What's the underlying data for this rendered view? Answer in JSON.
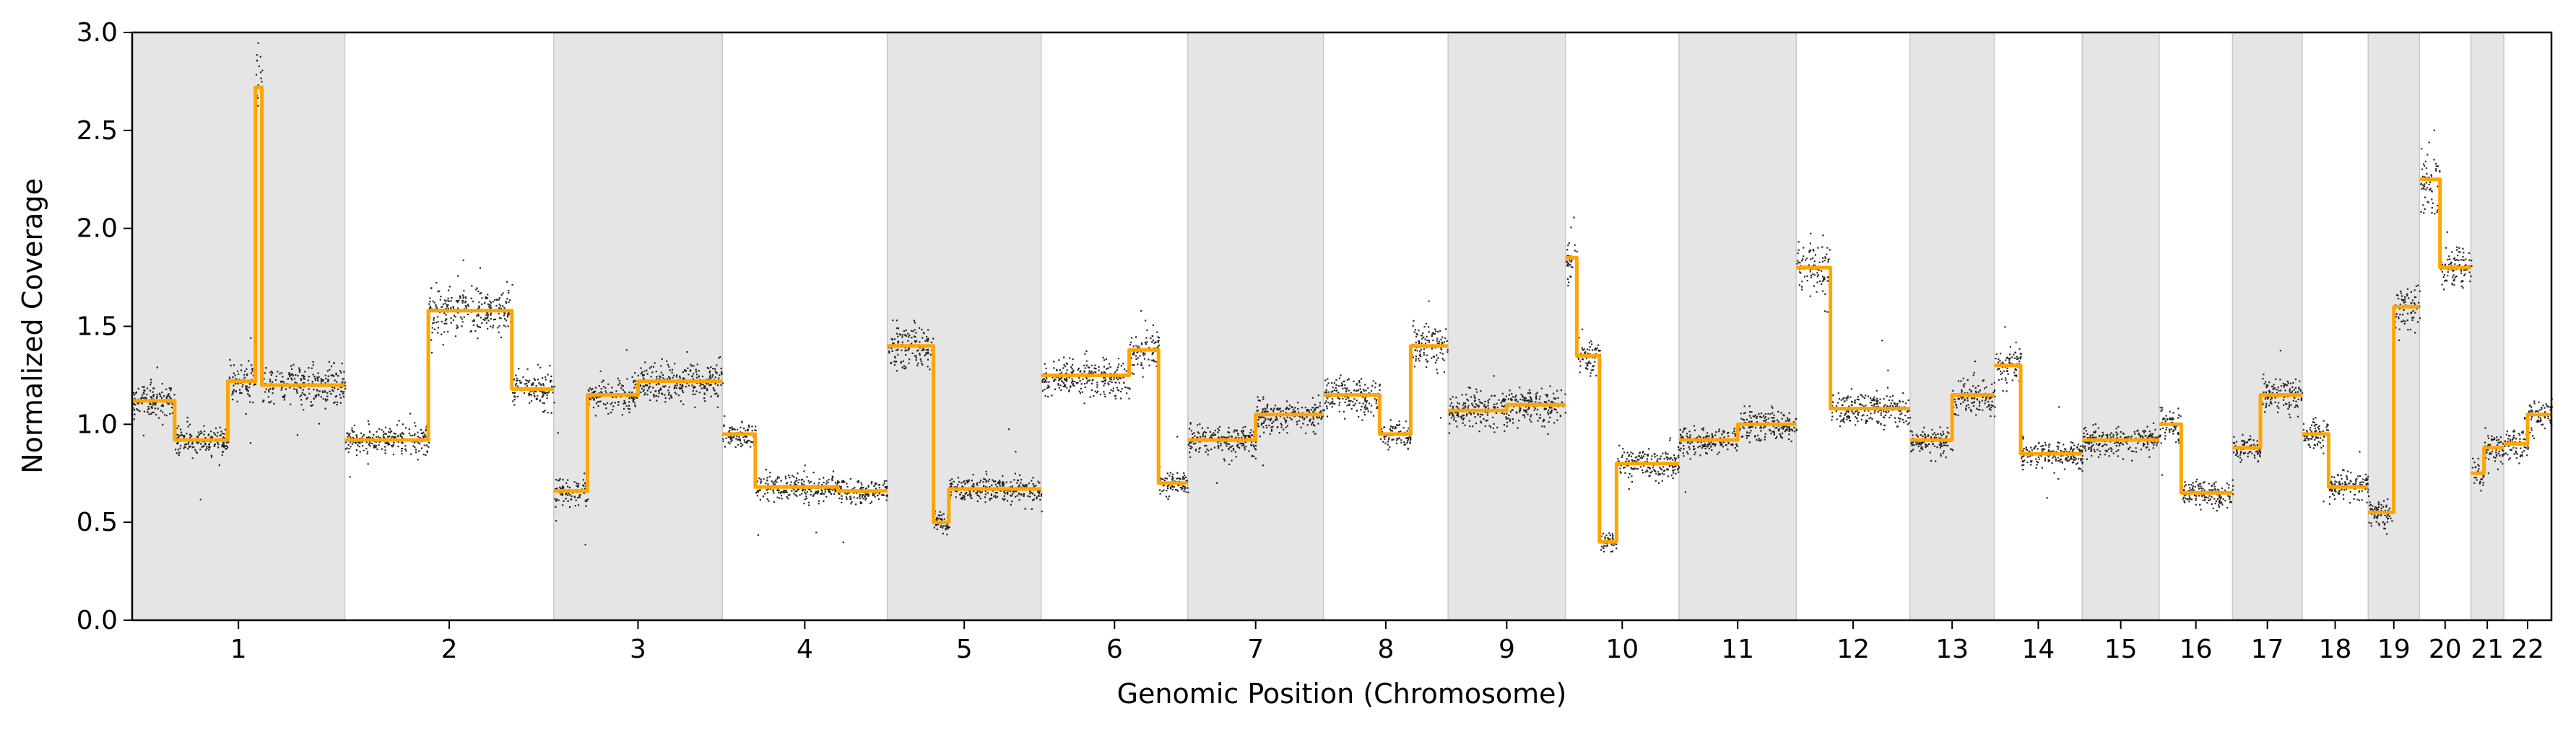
{
  "chart_data": {
    "type": "scatter",
    "title": "",
    "xlabel": "Genomic Position (Chromosome)",
    "ylabel": "Normalized Coverage",
    "ylim": [
      0,
      3.0
    ],
    "yticks": [
      0.0,
      0.5,
      1.0,
      1.5,
      2.0,
      2.5,
      3.0
    ],
    "ytick_labels": [
      "0.0",
      "0.5",
      "1.0",
      "1.5",
      "2.0",
      "2.5",
      "3.0"
    ],
    "grid": false,
    "legend": "none",
    "shaded_bands": "alternate chromosomes shaded gray",
    "colors": {
      "points": "#000000",
      "segments": "#FFA500",
      "band": "#E5E5E5",
      "band_edge": "#C8C8C8"
    },
    "chromosomes": [
      {
        "label": "1",
        "shaded": true,
        "segments": [
          {
            "from": 0.0,
            "to": 0.2,
            "value": 1.12
          },
          {
            "from": 0.2,
            "to": 0.45,
            "value": 0.92
          },
          {
            "from": 0.45,
            "to": 0.58,
            "value": 1.22
          },
          {
            "from": 0.58,
            "to": 0.61,
            "value": 2.72
          },
          {
            "from": 0.61,
            "to": 1.0,
            "value": 1.2
          }
        ]
      },
      {
        "label": "2",
        "shaded": false,
        "segments": [
          {
            "from": 0.0,
            "to": 0.4,
            "value": 0.92
          },
          {
            "from": 0.4,
            "to": 0.8,
            "value": 1.58
          },
          {
            "from": 0.8,
            "to": 1.0,
            "value": 1.18
          }
        ]
      },
      {
        "label": "3",
        "shaded": true,
        "segments": [
          {
            "from": 0.0,
            "to": 0.2,
            "value": 0.66
          },
          {
            "from": 0.2,
            "to": 0.5,
            "value": 1.15
          },
          {
            "from": 0.5,
            "to": 1.0,
            "value": 1.22
          }
        ]
      },
      {
        "label": "4",
        "shaded": false,
        "segments": [
          {
            "from": 0.0,
            "to": 0.2,
            "value": 0.95
          },
          {
            "from": 0.2,
            "to": 0.7,
            "value": 0.68
          },
          {
            "from": 0.7,
            "to": 1.0,
            "value": 0.66
          }
        ]
      },
      {
        "label": "5",
        "shaded": true,
        "segments": [
          {
            "from": 0.0,
            "to": 0.3,
            "value": 1.4
          },
          {
            "from": 0.3,
            "to": 0.4,
            "value": 0.5
          },
          {
            "from": 0.4,
            "to": 1.0,
            "value": 0.67
          }
        ]
      },
      {
        "label": "6",
        "shaded": false,
        "segments": [
          {
            "from": 0.0,
            "to": 0.6,
            "value": 1.25
          },
          {
            "from": 0.6,
            "to": 0.8,
            "value": 1.38
          },
          {
            "from": 0.8,
            "to": 1.0,
            "value": 0.7
          }
        ]
      },
      {
        "label": "7",
        "shaded": true,
        "segments": [
          {
            "from": 0.0,
            "to": 0.5,
            "value": 0.92
          },
          {
            "from": 0.5,
            "to": 1.0,
            "value": 1.05
          }
        ]
      },
      {
        "label": "8",
        "shaded": false,
        "segments": [
          {
            "from": 0.0,
            "to": 0.45,
            "value": 1.15
          },
          {
            "from": 0.45,
            "to": 0.7,
            "value": 0.95
          },
          {
            "from": 0.7,
            "to": 1.0,
            "value": 1.4
          }
        ]
      },
      {
        "label": "9",
        "shaded": true,
        "segments": [
          {
            "from": 0.0,
            "to": 0.5,
            "value": 1.07
          },
          {
            "from": 0.5,
            "to": 1.0,
            "value": 1.1
          }
        ]
      },
      {
        "label": "10",
        "shaded": false,
        "segments": [
          {
            "from": 0.0,
            "to": 0.1,
            "value": 1.85
          },
          {
            "from": 0.1,
            "to": 0.3,
            "value": 1.35
          },
          {
            "from": 0.3,
            "to": 0.45,
            "value": 0.4
          },
          {
            "from": 0.45,
            "to": 1.0,
            "value": 0.8
          }
        ]
      },
      {
        "label": "11",
        "shaded": true,
        "segments": [
          {
            "from": 0.0,
            "to": 0.5,
            "value": 0.92
          },
          {
            "from": 0.5,
            "to": 1.0,
            "value": 1.0
          }
        ]
      },
      {
        "label": "12",
        "shaded": false,
        "segments": [
          {
            "from": 0.0,
            "to": 0.3,
            "value": 1.8
          },
          {
            "from": 0.3,
            "to": 1.0,
            "value": 1.08
          }
        ]
      },
      {
        "label": "13",
        "shaded": true,
        "segments": [
          {
            "from": 0.0,
            "to": 0.5,
            "value": 0.92
          },
          {
            "from": 0.5,
            "to": 1.0,
            "value": 1.15
          }
        ]
      },
      {
        "label": "14",
        "shaded": false,
        "segments": [
          {
            "from": 0.0,
            "to": 0.3,
            "value": 1.3
          },
          {
            "from": 0.3,
            "to": 1.0,
            "value": 0.85
          }
        ]
      },
      {
        "label": "15",
        "shaded": true,
        "segments": [
          {
            "from": 0.0,
            "to": 1.0,
            "value": 0.92
          }
        ]
      },
      {
        "label": "16",
        "shaded": false,
        "segments": [
          {
            "from": 0.0,
            "to": 0.3,
            "value": 1.0
          },
          {
            "from": 0.3,
            "to": 1.0,
            "value": 0.65
          }
        ]
      },
      {
        "label": "17",
        "shaded": true,
        "segments": [
          {
            "from": 0.0,
            "to": 0.4,
            "value": 0.88
          },
          {
            "from": 0.4,
            "to": 1.0,
            "value": 1.15
          }
        ]
      },
      {
        "label": "18",
        "shaded": false,
        "segments": [
          {
            "from": 0.0,
            "to": 0.4,
            "value": 0.95
          },
          {
            "from": 0.4,
            "to": 1.0,
            "value": 0.68
          }
        ]
      },
      {
        "label": "19",
        "shaded": true,
        "segments": [
          {
            "from": 0.0,
            "to": 0.5,
            "value": 0.55
          },
          {
            "from": 0.5,
            "to": 1.0,
            "value": 1.6
          }
        ]
      },
      {
        "label": "20",
        "shaded": false,
        "segments": [
          {
            "from": 0.0,
            "to": 0.4,
            "value": 2.25
          },
          {
            "from": 0.4,
            "to": 1.0,
            "value": 1.8
          }
        ]
      },
      {
        "label": "21",
        "shaded": true,
        "segments": [
          {
            "from": 0.0,
            "to": 0.4,
            "value": 0.75
          },
          {
            "from": 0.4,
            "to": 1.0,
            "value": 0.88
          }
        ]
      },
      {
        "label": "22",
        "shaded": false,
        "segments": [
          {
            "from": 0.0,
            "to": 0.5,
            "value": 0.9
          },
          {
            "from": 0.5,
            "to": 1.0,
            "value": 1.05
          }
        ]
      }
    ]
  }
}
